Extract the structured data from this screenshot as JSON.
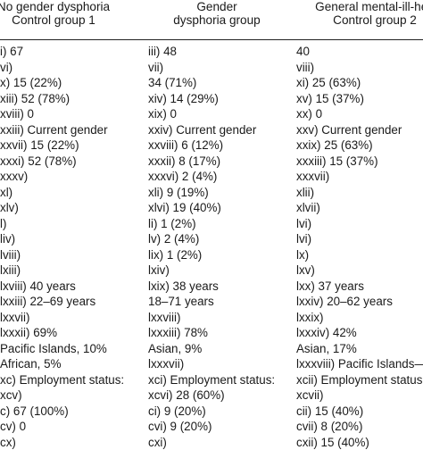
{
  "header": {
    "col1": [
      "No gender dysphoria",
      "Control group 1"
    ],
    "col2": [
      "Gender",
      "dysphoria group"
    ],
    "col3": [
      "General mental-ill-hea",
      "Control group 2"
    ]
  },
  "rows": [
    [
      "i) 67",
      "iii) 48",
      "40"
    ],
    [
      "vi)",
      "vii)",
      "viii)"
    ],
    [
      "x) 15 (22%)",
      "34 (71%)",
      "xi) 25 (63%)"
    ],
    [
      "xiii) 52 (78%)",
      "xiv) 14 (29%)",
      "xv) 15 (37%)"
    ],
    [
      "xviii) 0",
      "xix) 0",
      "xx) 0"
    ],
    [
      "xxiii) Current gender",
      "xxiv) Current gender",
      "xxv) Current gender"
    ],
    [
      "xxvii) 15 (22%)",
      "xxviii) 6 (12%)",
      "xxix) 25 (63%)"
    ],
    [
      "xxxi) 52 (78%)",
      "xxxii) 8 (17%)",
      "xxxiii) 15 (37%)"
    ],
    [
      "xxxv)",
      "xxxvi) 2 (4%)",
      "xxxvii)"
    ],
    [
      "xl)",
      "xli) 9 (19%)",
      "xlii)"
    ],
    [
      "xlv)",
      "xlvi) 19 (40%)",
      "xlvii)"
    ],
    [
      "l)",
      "li) 1 (2%)",
      "lvi)"
    ],
    [
      "liv)",
      "lv) 2 (4%)",
      "lvi)"
    ],
    [
      "lviii)",
      "lix) 1 (2%)",
      "lx)"
    ],
    [
      "lxiii)",
      "lxiv)",
      "lxv)"
    ],
    [
      "lxviii) 40 years",
      "lxix) 38 years",
      "lxx) 37 years"
    ],
    [
      "lxxiii) 22–69 years",
      "18–71 years",
      "lxxiv) 20–62 years"
    ],
    [
      "lxxvii)",
      "lxxviii)",
      "lxxix)"
    ],
    [
      "lxxxii) 69%",
      "lxxxiii) 78%",
      "lxxxiv) 42%"
    ],
    [
      "Pacific Islands, 10%",
      "Asian, 9%",
      "Asian, 17%"
    ],
    [
      "African, 5%",
      "lxxxvii)",
      "lxxxviii) Pacific Islands—"
    ],
    [
      "xc) Employment status:",
      "xci) Employment status:",
      "xcii) Employment status"
    ],
    [
      "xcv)",
      "xcvi) 28 (60%)",
      "xcvii)"
    ],
    [
      "c) 67 (100%)",
      "ci) 9 (20%)",
      "cii) 15 (40%)"
    ],
    [
      "cv) 0",
      "cvi) 9 (20%)",
      "cvii) 8 (20%)"
    ],
    [
      "cx)",
      "cxi)",
      "cxii) 15 (40%)"
    ]
  ]
}
